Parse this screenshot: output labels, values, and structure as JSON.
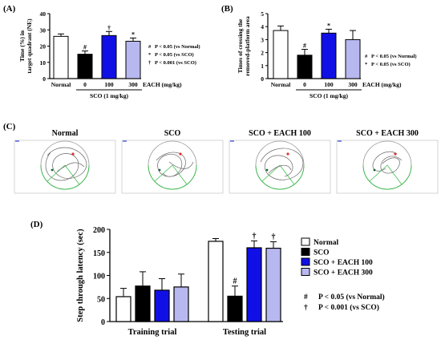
{
  "colors": {
    "normal": "#ffffff",
    "sco": "#000000",
    "each100": "#1010e6",
    "each300": "#b8b8f0",
    "path_stroke": "#666666",
    "pool_stroke": "#9a9a9a",
    "quadrant_green": "#33bb44",
    "quadrant_red": "#dd3333",
    "quadrant_blue": "#3344dd"
  },
  "panels": {
    "a_label": "(A)",
    "b_label": "(B)",
    "c_label": "(C)",
    "d_label": "(D)"
  },
  "chart_data": [
    {
      "id": "A",
      "type": "bar",
      "ylabel_line1": "Time (%) in",
      "ylabel_line2": "target quadrant (NE)",
      "ylim": [
        0,
        40
      ],
      "yticks": [
        0,
        10,
        20,
        30,
        40
      ],
      "categories": [
        "Normal",
        "0",
        "100",
        "300"
      ],
      "values": [
        26,
        15,
        26.5,
        23
      ],
      "errors": [
        1.5,
        2,
        2.5,
        2
      ],
      "fills": [
        "#ffffff",
        "#000000",
        "#1010e6",
        "#b8b8f0"
      ],
      "markers": [
        "",
        "#",
        "†",
        "*"
      ],
      "axis_suffix": "EACH (mg/kg)",
      "group_label": "SCO (1 mg/kg)",
      "legend": [
        {
          "sym": "#",
          "text": "P < 0.05 (vs Normal)"
        },
        {
          "sym": "*",
          "text": "P < 0.05 (vs SCO)"
        },
        {
          "sym": "†",
          "text": "P < 0.001 (vs SCO)"
        }
      ]
    },
    {
      "id": "B",
      "type": "bar",
      "ylabel_line1": "Times of crossing the",
      "ylabel_line2": "removed-platform area",
      "ylim": [
        0,
        5
      ],
      "yticks": [
        0,
        1,
        2,
        3,
        4,
        5
      ],
      "categories": [
        "Normal",
        "0",
        "100",
        "300"
      ],
      "values": [
        3.7,
        1.8,
        3.5,
        3
      ],
      "errors": [
        0.35,
        0.45,
        0.3,
        0.7
      ],
      "fills": [
        "#ffffff",
        "#000000",
        "#1010e6",
        "#b8b8f0"
      ],
      "markers": [
        "",
        "#",
        "*",
        ""
      ],
      "axis_suffix": "EACH (mg/kg)",
      "group_label": "SCO (1 mg/kg)",
      "legend": [
        {
          "sym": "#",
          "text": "P < 0.05 (vs Normal)"
        },
        {
          "sym": "*",
          "text": "P < 0.05 (vs SCO)"
        }
      ]
    },
    {
      "id": "D",
      "type": "bar",
      "ylabel": "Step through latency (sec)",
      "ylim": [
        0,
        200
      ],
      "yticks": [
        0,
        50,
        100,
        150,
        200
      ],
      "categories": [
        "Training trial",
        "Testing trial"
      ],
      "series": [
        {
          "name": "Normal",
          "values": [
            54,
            174
          ],
          "errors": [
            18,
            6
          ],
          "markers": [
            "",
            ""
          ]
        },
        {
          "name": "SCO",
          "values": [
            77,
            55
          ],
          "errors": [
            31,
            22
          ],
          "markers": [
            "",
            "#"
          ]
        },
        {
          "name": "SCO + EACH 100",
          "values": [
            68,
            160
          ],
          "errors": [
            25,
            15
          ],
          "markers": [
            "",
            "†"
          ]
        },
        {
          "name": "SCO + EACH 300",
          "values": [
            75,
            159
          ],
          "errors": [
            28,
            14
          ],
          "markers": [
            "",
            "†"
          ]
        }
      ],
      "fills": [
        "#ffffff",
        "#000000",
        "#1010e6",
        "#b8b8f0"
      ],
      "sig_legend": [
        {
          "sym": "#",
          "text": "P < 0.05 (vs Normal)"
        },
        {
          "sym": "†",
          "text": "P < 0.001 (vs SCO)"
        }
      ]
    }
  ],
  "maze": {
    "titles": [
      "Normal",
      "SCO",
      "SCO + EACH 100",
      "SCO + EACH 300"
    ]
  }
}
